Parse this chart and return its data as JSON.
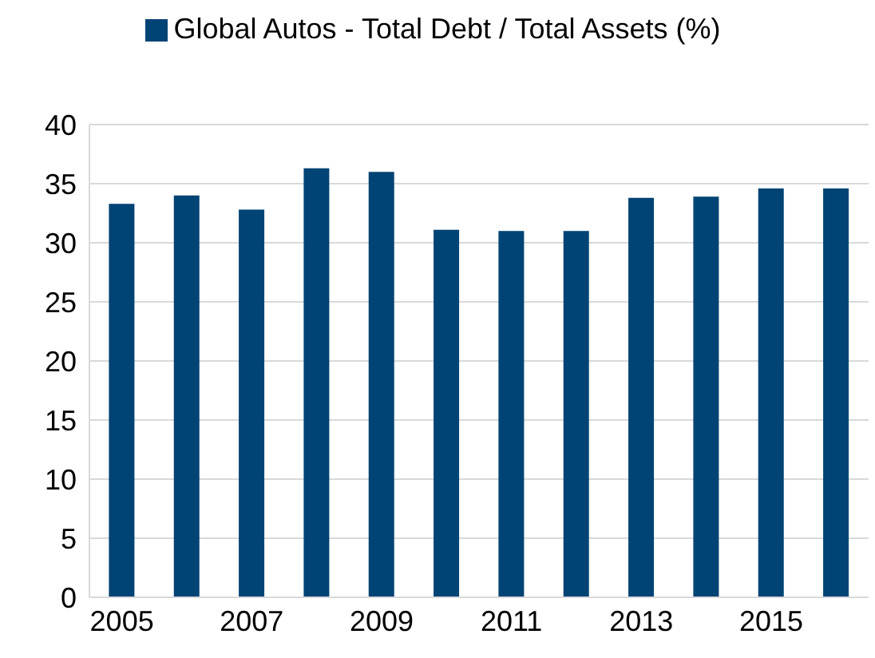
{
  "chart_data": {
    "type": "bar",
    "categories": [
      "2005",
      null,
      "2007",
      null,
      "2009",
      null,
      "2011",
      null,
      "2013",
      null,
      "2015",
      null
    ],
    "series": [
      {
        "name": "Global Autos - Total Debt / Total Assets (%)",
        "color": "#004375",
        "values": [
          33.3,
          34.0,
          32.8,
          36.3,
          36.0,
          31.1,
          31.0,
          31.0,
          33.8,
          33.9,
          34.6,
          34.6
        ]
      }
    ],
    "ylim": [
      0,
      40
    ],
    "yticks": [
      0,
      5,
      10,
      15,
      20,
      25,
      30,
      35,
      40
    ],
    "grid": "y",
    "legend": "top"
  }
}
